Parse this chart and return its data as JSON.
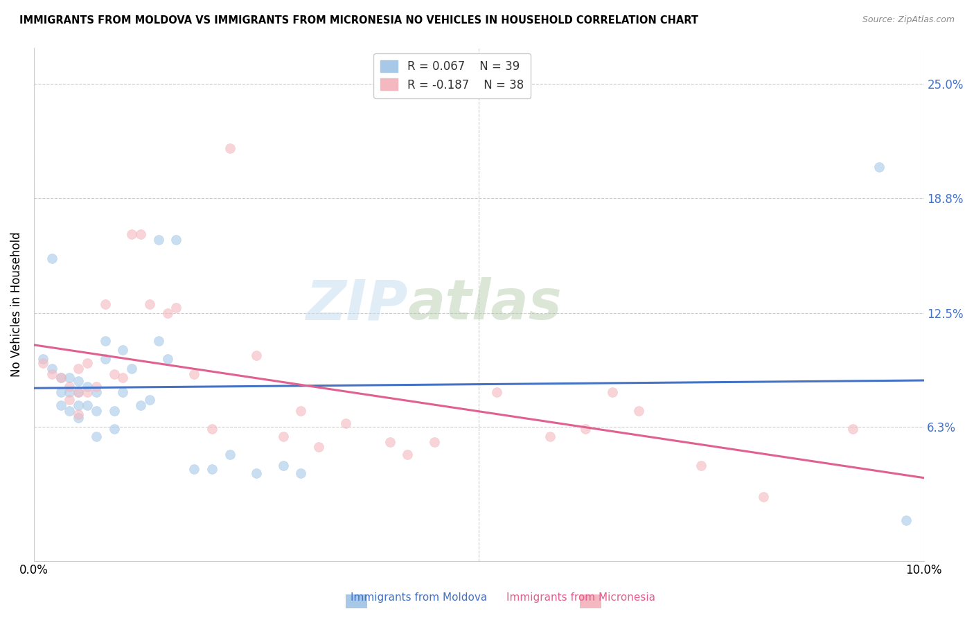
{
  "title": "IMMIGRANTS FROM MOLDOVA VS IMMIGRANTS FROM MICRONESIA NO VEHICLES IN HOUSEHOLD CORRELATION CHART",
  "source": "Source: ZipAtlas.com",
  "ylabel": "No Vehicles in Household",
  "ytick_labels": [
    "6.3%",
    "12.5%",
    "18.8%",
    "25.0%"
  ],
  "ytick_values": [
    0.063,
    0.125,
    0.188,
    0.25
  ],
  "xlim": [
    0.0,
    0.1
  ],
  "ylim": [
    -0.01,
    0.27
  ],
  "legend_r1": "R = 0.067",
  "legend_n1": "N = 39",
  "legend_r2": "R = -0.187",
  "legend_n2": "N = 38",
  "color_moldova": "#a8c8e8",
  "color_micronesia": "#f4b8c0",
  "color_moldova_line": "#4472c4",
  "color_micronesia_line": "#e06090",
  "watermark_zip": "ZIP",
  "watermark_atlas": "atlas",
  "moldova_x": [
    0.001,
    0.002,
    0.002,
    0.003,
    0.003,
    0.003,
    0.004,
    0.004,
    0.004,
    0.005,
    0.005,
    0.005,
    0.005,
    0.006,
    0.006,
    0.007,
    0.007,
    0.007,
    0.008,
    0.008,
    0.009,
    0.009,
    0.01,
    0.01,
    0.011,
    0.012,
    0.013,
    0.014,
    0.014,
    0.015,
    0.016,
    0.018,
    0.02,
    0.022,
    0.025,
    0.028,
    0.03,
    0.095,
    0.098
  ],
  "moldova_y": [
    0.1,
    0.155,
    0.095,
    0.09,
    0.082,
    0.075,
    0.09,
    0.082,
    0.072,
    0.088,
    0.082,
    0.075,
    0.068,
    0.085,
    0.075,
    0.082,
    0.072,
    0.058,
    0.11,
    0.1,
    0.072,
    0.062,
    0.105,
    0.082,
    0.095,
    0.075,
    0.078,
    0.11,
    0.165,
    0.1,
    0.165,
    0.04,
    0.04,
    0.048,
    0.038,
    0.042,
    0.038,
    0.205,
    0.012
  ],
  "micronesia_x": [
    0.001,
    0.002,
    0.003,
    0.004,
    0.004,
    0.005,
    0.005,
    0.005,
    0.006,
    0.006,
    0.007,
    0.008,
    0.009,
    0.01,
    0.011,
    0.012,
    0.013,
    0.015,
    0.016,
    0.018,
    0.02,
    0.022,
    0.025,
    0.028,
    0.03,
    0.032,
    0.035,
    0.04,
    0.042,
    0.045,
    0.052,
    0.058,
    0.062,
    0.065,
    0.068,
    0.075,
    0.082,
    0.092
  ],
  "micronesia_y": [
    0.098,
    0.092,
    0.09,
    0.085,
    0.078,
    0.095,
    0.082,
    0.07,
    0.098,
    0.082,
    0.085,
    0.13,
    0.092,
    0.09,
    0.168,
    0.168,
    0.13,
    0.125,
    0.128,
    0.092,
    0.062,
    0.215,
    0.102,
    0.058,
    0.072,
    0.052,
    0.065,
    0.055,
    0.048,
    0.055,
    0.082,
    0.058,
    0.062,
    0.082,
    0.072,
    0.042,
    0.025,
    0.062
  ],
  "marker_size": 100,
  "marker_alpha": 0.6,
  "background_color": "#ffffff",
  "grid_color": "#cccccc"
}
